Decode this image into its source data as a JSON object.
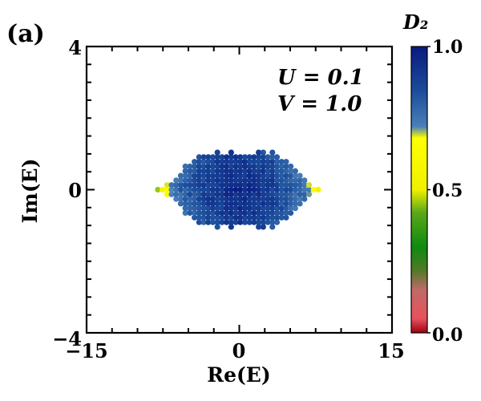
{
  "chart_data": {
    "type": "scatter",
    "panel_label": "(a)",
    "xlabel": "Re(E)",
    "ylabel": "Im(E)",
    "xlim": [
      -15,
      15
    ],
    "ylim": [
      -4,
      4
    ],
    "x_ticks": [
      "−15",
      "0",
      "15"
    ],
    "y_ticks": [
      "−4",
      "0",
      "4"
    ],
    "annotations": [
      "U = 0.1",
      "V = 1.0"
    ],
    "colorbar": {
      "label": "D₂",
      "range": [
        0.0,
        1.0
      ],
      "tick_labels": [
        "0.0",
        "0.5",
        "1.0"
      ],
      "stops": [
        {
          "value": 0.0,
          "color": "#a00010"
        },
        {
          "value": 0.05,
          "color": "#e8525c"
        },
        {
          "value": 0.15,
          "color": "#c06a66"
        },
        {
          "value": 0.22,
          "color": "#4e7a26"
        },
        {
          "value": 0.3,
          "color": "#0f8a10"
        },
        {
          "value": 0.42,
          "color": "#5aa818"
        },
        {
          "value": 0.5,
          "color": "#f0f000"
        },
        {
          "value": 0.68,
          "color": "#ffff00"
        },
        {
          "value": 0.72,
          "color": "#4a80b8"
        },
        {
          "value": 0.85,
          "color": "#1a4a9a"
        },
        {
          "value": 1.0,
          "color": "#0a1a80"
        }
      ]
    },
    "series": [
      {
        "name": "eigenvalues",
        "generator": "lattice",
        "x_range": [
          -8.0,
          8.0
        ],
        "x_step": 0.45,
        "y_step": 0.13,
        "im_profile": [
          [
            0.0,
            1.0
          ],
          [
            3.0,
            1.05
          ],
          [
            4.5,
            0.85
          ],
          [
            5.5,
            0.55
          ],
          [
            6.5,
            0.28
          ],
          [
            8.0,
            0.0
          ]
        ],
        "color_value_profile": [
          [
            0.0,
            0.95
          ],
          [
            3.0,
            0.9
          ],
          [
            5.0,
            0.82
          ],
          [
            6.5,
            0.76
          ],
          [
            7.5,
            0.6
          ],
          [
            8.0,
            0.45
          ]
        ]
      }
    ]
  }
}
